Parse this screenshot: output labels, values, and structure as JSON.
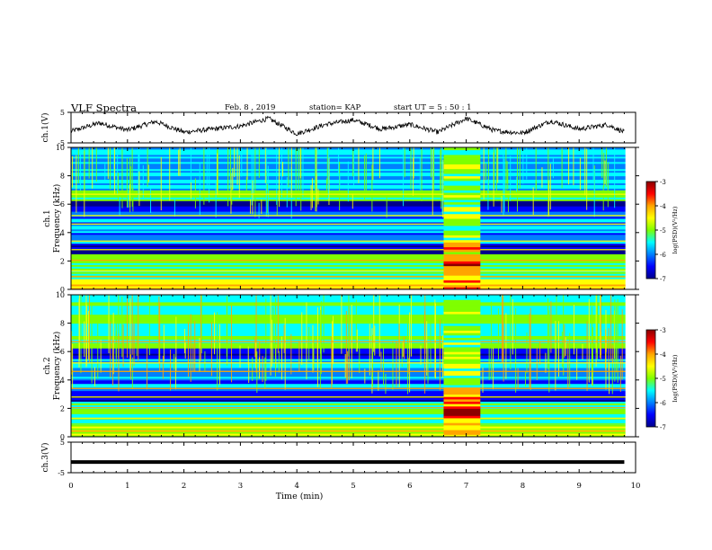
{
  "header": {
    "title": "VLF Spectra",
    "date": "Feb. 8 , 2019",
    "station": "station= KAP",
    "start_ut": "start UT =  5 : 50 : 1"
  },
  "panels": {
    "ch1_label": "ch.1(V)",
    "spec1_label_ch": "ch.1",
    "spec1_label_freq": "Frequency (kHz)",
    "spec2_label_ch": "ch.2",
    "spec2_label_freq": "Frequency (kHz)",
    "ch3_label": "ch.3(V)",
    "xlabel": "Time (min)"
  },
  "colorbar": {
    "label": "log(PSD)(V²/Hz)",
    "ticks": [
      -3,
      -4,
      -5,
      -6,
      -7
    ],
    "colors": [
      "#8b0000",
      "#ff0000",
      "#ffa500",
      "#ffff00",
      "#7fff00",
      "#00ffff",
      "#0080ff",
      "#0000ff",
      "#00008b"
    ]
  },
  "chart_data": [
    {
      "type": "line",
      "name": "ch1_waveform",
      "ylabel": "ch.1(V)",
      "ylim": [
        -5,
        5
      ],
      "yticks": [
        5,
        -5
      ],
      "xlim": [
        0,
        10
      ],
      "x": [
        0,
        0.5,
        1,
        1.5,
        2,
        2.5,
        3,
        3.5,
        4,
        4.5,
        5,
        5.5,
        6,
        6.5,
        7,
        7.5,
        8,
        8.5,
        9,
        9.5,
        9.8
      ],
      "y": [
        -1.2,
        1.5,
        -0.8,
        2.0,
        -1.5,
        -0.5,
        0.5,
        3.0,
        -2.0,
        1.0,
        2.5,
        -0.5,
        1.0,
        -1.5,
        3.0,
        -1.0,
        -1.8,
        2.2,
        -0.5,
        1.0,
        -1.5
      ]
    },
    {
      "type": "heatmap",
      "name": "ch1_spectrogram",
      "ylabel": "Frequency (kHz)",
      "ylim": [
        0,
        10
      ],
      "yticks": [
        0,
        2,
        4,
        6,
        8,
        10
      ],
      "xlim": [
        0,
        10
      ],
      "burst_interval_min": [
        6.6,
        7.25
      ]
    },
    {
      "type": "heatmap",
      "name": "ch2_spectrogram",
      "ylabel": "Frequency (kHz)",
      "ylim": [
        0,
        10
      ],
      "yticks": [
        0,
        2,
        4,
        6,
        8,
        10
      ],
      "xlim": [
        0,
        10
      ],
      "burst_interval_min": [
        6.6,
        7.25
      ]
    },
    {
      "type": "line",
      "name": "ch3_waveform",
      "ylabel": "ch.3(V)",
      "ylim": [
        -5,
        5
      ],
      "yticks": [
        5,
        -5
      ],
      "xlim": [
        0,
        10
      ],
      "x": [
        0,
        9.8
      ],
      "y": [
        -1.5,
        -1.5
      ]
    }
  ],
  "xaxis": {
    "ticks": [
      0,
      1,
      2,
      3,
      4,
      5,
      6,
      7,
      8,
      9,
      10
    ],
    "label": "Time (min)"
  }
}
